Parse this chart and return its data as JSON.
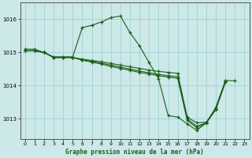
{
  "title": "Graphe pression niveau de la mer (hPa)",
  "background_color": "#cce8e8",
  "line_color": "#1a5e1a",
  "ylim": [
    1012.4,
    1016.5
  ],
  "xlim": [
    -0.5,
    23.5
  ],
  "yticks": [
    1013,
    1014,
    1015,
    1016
  ],
  "xticks": [
    0,
    1,
    2,
    3,
    4,
    5,
    6,
    7,
    8,
    9,
    10,
    11,
    12,
    13,
    14,
    15,
    16,
    17,
    18,
    19,
    20,
    21,
    22,
    23
  ],
  "series": [
    {
      "x": [
        0,
        1,
        2,
        3,
        4,
        5,
        6,
        7,
        8,
        9,
        10,
        11,
        12,
        13,
        14,
        15,
        16,
        17,
        18,
        19,
        20,
        21
      ],
      "y": [
        1015.1,
        1015.1,
        1015.0,
        1014.87,
        1014.87,
        1014.87,
        1015.75,
        1015.82,
        1015.92,
        1016.05,
        1016.1,
        1015.6,
        1015.2,
        1014.7,
        1014.2,
        1013.1,
        1013.05,
        1012.85,
        1012.65,
        1012.88,
        1013.35,
        1014.15
      ],
      "markers": true
    },
    {
      "x": [
        0,
        1,
        2,
        3,
        4,
        5,
        6,
        7,
        8,
        9,
        10,
        11,
        12,
        13,
        14,
        15,
        16,
        17,
        18,
        19,
        20,
        21,
        22
      ],
      "y": [
        1015.05,
        1015.05,
        1015.0,
        1014.85,
        1014.85,
        1014.85,
        1014.8,
        1014.76,
        1014.72,
        1014.67,
        1014.62,
        1014.57,
        1014.52,
        1014.47,
        1014.43,
        1014.4,
        1014.37,
        1013.05,
        1012.88,
        1012.9,
        1013.3,
        1014.15,
        1014.15
      ],
      "markers": true
    },
    {
      "x": [
        0,
        1,
        2,
        3,
        4,
        5,
        6,
        7,
        8,
        9,
        10,
        11,
        12,
        13,
        14,
        15,
        16,
        17,
        18,
        19,
        20,
        21
      ],
      "y": [
        1015.05,
        1015.05,
        1015.0,
        1014.85,
        1014.85,
        1014.85,
        1014.78,
        1014.73,
        1014.68,
        1014.62,
        1014.56,
        1014.5,
        1014.44,
        1014.39,
        1014.34,
        1014.3,
        1014.27,
        1013.0,
        1012.78,
        1012.88,
        1013.3,
        1014.12
      ],
      "markers": true
    },
    {
      "x": [
        0,
        1,
        2,
        3,
        4,
        5,
        6,
        7,
        8,
        9,
        10,
        11,
        12,
        13,
        14,
        15,
        16,
        17,
        18,
        19,
        20,
        21
      ],
      "y": [
        1015.05,
        1015.05,
        1015.0,
        1014.85,
        1014.85,
        1014.85,
        1014.77,
        1014.71,
        1014.65,
        1014.58,
        1014.52,
        1014.46,
        1014.4,
        1014.35,
        1014.3,
        1014.26,
        1014.22,
        1012.95,
        1012.73,
        1012.87,
        1013.28,
        1014.1
      ],
      "markers": true
    }
  ]
}
